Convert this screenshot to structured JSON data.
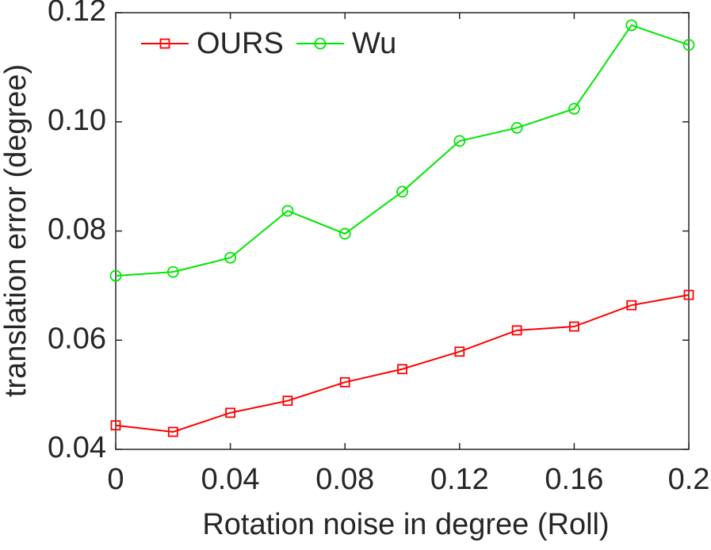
{
  "chart_data": {
    "type": "line",
    "x_label": "Rotation noise in degree (Roll)",
    "y_label": "translation error (degree)",
    "x": [
      0,
      0.02,
      0.04,
      0.06,
      0.08,
      0.1,
      0.12,
      0.14,
      0.16,
      0.18,
      0.2
    ],
    "series": [
      {
        "name": "OURS",
        "color": "#ff0000",
        "marker": "square",
        "values": [
          0.0444,
          0.0432,
          0.0467,
          0.0489,
          0.0523,
          0.0547,
          0.0579,
          0.0618,
          0.0625,
          0.0664,
          0.0683
        ]
      },
      {
        "name": "Wu",
        "color": "#00e600",
        "marker": "circle",
        "values": [
          0.0718,
          0.0725,
          0.0751,
          0.0837,
          0.0795,
          0.0872,
          0.0965,
          0.0989,
          0.1024,
          0.1177,
          0.1141
        ]
      }
    ],
    "xlim": [
      0,
      0.2
    ],
    "xticks": [
      0,
      0.04,
      0.08,
      0.12,
      0.16,
      0.2
    ],
    "ylim": [
      0.04,
      0.12
    ],
    "yticks": [
      0.04,
      0.06,
      0.08,
      {
        "value": 0.1,
        "label": "0.10"
      },
      0.12
    ],
    "legend": "top-left",
    "grid": false
  }
}
